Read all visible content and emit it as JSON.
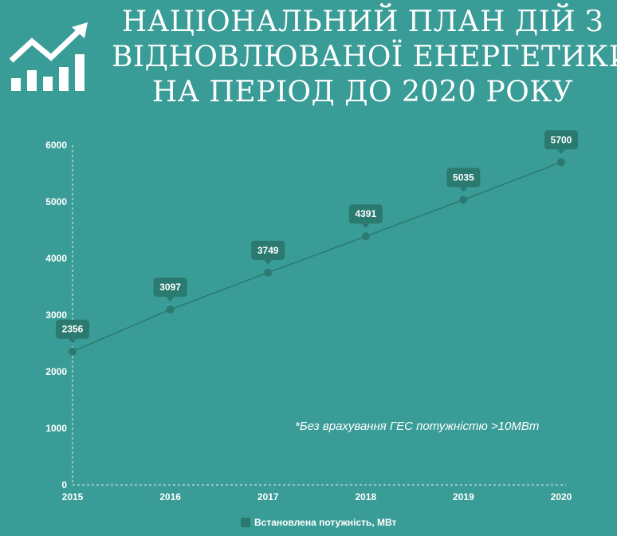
{
  "title_lines": [
    "НАЦІОНАЛЬНИЙ ПЛАН ДІЙ З",
    "ВІДНОВЛЮВАНОЇ ЕНЕРГЕТИКИ",
    "НА ПЕРІОД ДО 2020 РОКУ"
  ],
  "footnote": "*Без врахування ГЕС потужністю >10МВт",
  "colors": {
    "background": "#3a9c96",
    "series": "#2b7a70",
    "label_bg": "#2b7a70",
    "axis": "#ffffff"
  },
  "chart_data": {
    "type": "line",
    "x": [
      "2015",
      "2016",
      "2017",
      "2018",
      "2019",
      "2020"
    ],
    "series": [
      {
        "name": "Встановлена потужність, МВт",
        "values": [
          2356,
          3097,
          3749,
          4391,
          5035,
          5700
        ]
      }
    ],
    "ylim": [
      0,
      6000
    ],
    "yticks": [
      0,
      1000,
      2000,
      3000,
      4000,
      5000,
      6000
    ],
    "grid": false,
    "legend_position": "bottom-center",
    "data_labels": true
  }
}
